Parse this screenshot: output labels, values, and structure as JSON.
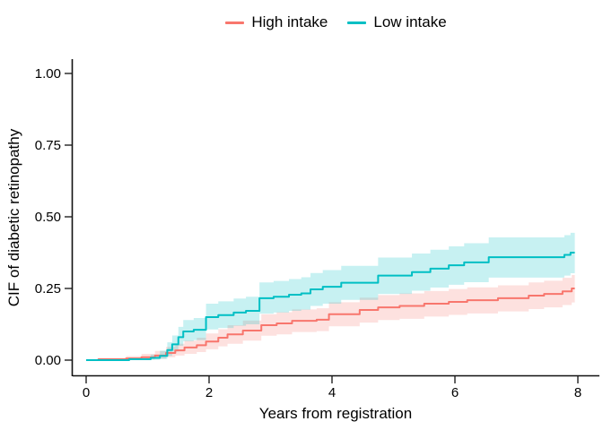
{
  "chart_data": {
    "type": "line",
    "subtype": "step-function-with-confidence-bands",
    "title": "",
    "xlabel": "Years from registration",
    "ylabel": "CIF of diabetic retinopathy",
    "grid": false,
    "legend_position": "top-center",
    "background_color": "#ffffff",
    "axis_color": "#000000",
    "x_axis": {
      "ticks": [
        0,
        2,
        4,
        6,
        8
      ],
      "labels": [
        "0",
        "2",
        "4",
        "6",
        "8"
      ],
      "range": [
        0,
        8.4
      ]
    },
    "y_axis": {
      "ticks": [
        0,
        0.25,
        0.5,
        0.75,
        1.0
      ],
      "labels": [
        "0.00",
        "0.25",
        "0.50",
        "0.75",
        "1.00"
      ],
      "range": [
        0,
        1
      ]
    },
    "series": [
      {
        "name": "High intake",
        "color": "#F8766D",
        "band_color": "rgba(248,118,109,0.22)",
        "x_end": 7.95,
        "points_format": [
          "x_years",
          "cif",
          "ci_low",
          "ci_high"
        ],
        "points": [
          [
            0,
            0,
            0,
            0
          ],
          [
            0.2,
            0.003,
            0,
            0.008
          ],
          [
            0.65,
            0.006,
            0.001,
            0.014
          ],
          [
            0.9,
            0.01,
            0.002,
            0.022
          ],
          [
            1.12,
            0.016,
            0.005,
            0.032
          ],
          [
            1.3,
            0.025,
            0.01,
            0.046
          ],
          [
            1.45,
            0.034,
            0.016,
            0.057
          ],
          [
            1.6,
            0.044,
            0.022,
            0.068
          ],
          [
            1.8,
            0.052,
            0.028,
            0.078
          ],
          [
            1.95,
            0.065,
            0.038,
            0.093
          ],
          [
            2.15,
            0.078,
            0.048,
            0.108
          ],
          [
            2.3,
            0.09,
            0.057,
            0.122
          ],
          [
            2.55,
            0.103,
            0.068,
            0.138
          ],
          [
            2.85,
            0.122,
            0.085,
            0.16
          ],
          [
            3.1,
            0.128,
            0.09,
            0.167
          ],
          [
            3.35,
            0.137,
            0.098,
            0.177
          ],
          [
            3.75,
            0.141,
            0.101,
            0.181
          ],
          [
            3.95,
            0.16,
            0.118,
            0.202
          ],
          [
            4.45,
            0.175,
            0.131,
            0.218
          ],
          [
            4.75,
            0.184,
            0.14,
            0.227
          ],
          [
            5.1,
            0.189,
            0.144,
            0.233
          ],
          [
            5.5,
            0.197,
            0.152,
            0.241
          ],
          [
            5.9,
            0.203,
            0.158,
            0.248
          ],
          [
            6.2,
            0.209,
            0.163,
            0.254
          ],
          [
            6.7,
            0.216,
            0.17,
            0.261
          ],
          [
            7.2,
            0.225,
            0.178,
            0.271
          ],
          [
            7.45,
            0.231,
            0.184,
            0.277
          ],
          [
            7.75,
            0.24,
            0.192,
            0.287
          ],
          [
            7.9,
            0.25,
            0.201,
            0.297
          ]
        ]
      },
      {
        "name": "Low intake",
        "color": "#00BFC4",
        "band_color": "rgba(0,191,196,0.22)",
        "x_end": 7.95,
        "points_format": [
          "x_years",
          "cif",
          "ci_low",
          "ci_high"
        ],
        "points": [
          [
            0,
            0,
            0,
            0
          ],
          [
            0.7,
            0.003,
            0,
            0.009
          ],
          [
            1.05,
            0.008,
            0.001,
            0.019
          ],
          [
            1.2,
            0.015,
            0.004,
            0.033
          ],
          [
            1.32,
            0.035,
            0.015,
            0.062
          ],
          [
            1.4,
            0.055,
            0.03,
            0.086
          ],
          [
            1.5,
            0.08,
            0.05,
            0.116
          ],
          [
            1.58,
            0.1,
            0.066,
            0.14
          ],
          [
            1.75,
            0.106,
            0.07,
            0.147
          ],
          [
            1.95,
            0.15,
            0.107,
            0.197
          ],
          [
            2.15,
            0.157,
            0.112,
            0.205
          ],
          [
            2.4,
            0.166,
            0.12,
            0.215
          ],
          [
            2.6,
            0.172,
            0.125,
            0.221
          ],
          [
            2.82,
            0.216,
            0.162,
            0.271
          ],
          [
            3.05,
            0.221,
            0.166,
            0.276
          ],
          [
            3.3,
            0.228,
            0.172,
            0.283
          ],
          [
            3.5,
            0.233,
            0.176,
            0.289
          ],
          [
            3.65,
            0.247,
            0.189,
            0.304
          ],
          [
            3.85,
            0.256,
            0.197,
            0.314
          ],
          [
            4.15,
            0.27,
            0.21,
            0.329
          ],
          [
            4.75,
            0.295,
            0.231,
            0.358
          ],
          [
            5.3,
            0.307,
            0.242,
            0.372
          ],
          [
            5.6,
            0.319,
            0.253,
            0.385
          ],
          [
            5.9,
            0.331,
            0.263,
            0.397
          ],
          [
            6.15,
            0.341,
            0.272,
            0.408
          ],
          [
            6.55,
            0.359,
            0.288,
            0.428
          ],
          [
            7.78,
            0.367,
            0.295,
            0.436
          ],
          [
            7.88,
            0.375,
            0.303,
            0.444
          ]
        ]
      }
    ]
  }
}
